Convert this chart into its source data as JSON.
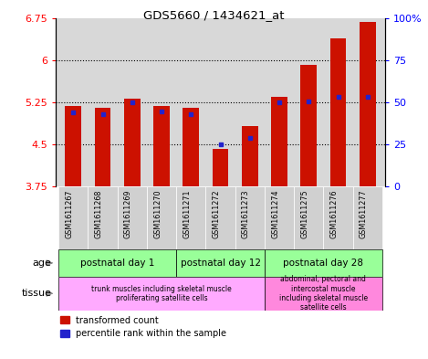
{
  "title": "GDS5660 / 1434621_at",
  "samples": [
    "GSM1611267",
    "GSM1611268",
    "GSM1611269",
    "GSM1611270",
    "GSM1611271",
    "GSM1611272",
    "GSM1611273",
    "GSM1611274",
    "GSM1611275",
    "GSM1611276",
    "GSM1611277"
  ],
  "transformed_count": [
    5.18,
    5.15,
    5.32,
    5.18,
    5.15,
    4.42,
    4.82,
    5.35,
    5.92,
    6.38,
    6.68
  ],
  "percentile_y": [
    5.07,
    5.04,
    5.25,
    5.08,
    5.04,
    4.5,
    4.62,
    5.25,
    5.26,
    5.35,
    5.35
  ],
  "ylim_left": [
    3.75,
    6.75
  ],
  "ylim_right": [
    0,
    100
  ],
  "yticks_left": [
    3.75,
    4.5,
    5.25,
    6.0,
    6.75
  ],
  "yticks_right": [
    0,
    25,
    50,
    75,
    100
  ],
  "ytick_labels_left": [
    "3.75",
    "4.5",
    "5.25",
    "6",
    "6.75"
  ],
  "ytick_labels_right": [
    "0",
    "25",
    "50",
    "75",
    "100%"
  ],
  "bar_color": "#cc1100",
  "dot_color": "#2222cc",
  "bar_bottom": 3.75,
  "dotted_gridlines": [
    4.5,
    5.25,
    6.0
  ],
  "age_groups": [
    {
      "label": "postnatal day 1",
      "start": 0,
      "end": 4
    },
    {
      "label": "postnatal day 12",
      "start": 4,
      "end": 7
    },
    {
      "label": "postnatal day 28",
      "start": 7,
      "end": 11
    }
  ],
  "tissue_groups": [
    {
      "label": "trunk muscles including skeletal muscle\nproliferating satellite cells",
      "start": 0,
      "end": 7
    },
    {
      "label": "abdominal, pectoral and\nintercostal muscle\nincluding skeletal muscle\nsatellite cells",
      "start": 7,
      "end": 11
    }
  ],
  "age_color": "#99ff99",
  "tissue_color1": "#ffaaff",
  "tissue_color2": "#ff88dd",
  "bg_color": "#d8d8d8",
  "sample_box_color": "#d0d0d0",
  "bar_width": 0.55
}
